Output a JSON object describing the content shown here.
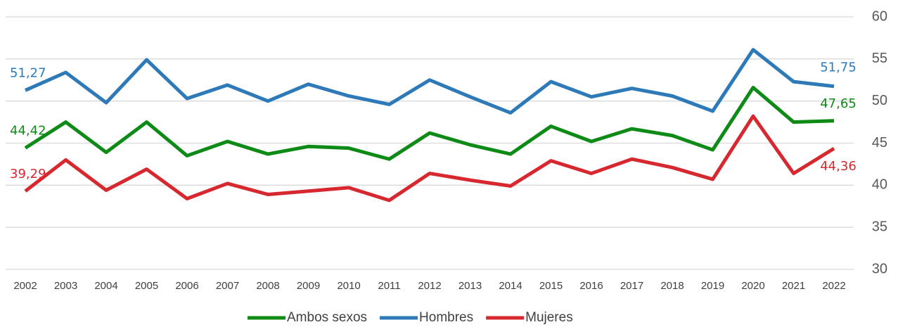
{
  "chart_data": {
    "type": "line",
    "categories": [
      "2002",
      "2003",
      "2004",
      "2005",
      "2006",
      "2007",
      "2008",
      "2009",
      "2010",
      "2011",
      "2012",
      "2013",
      "2014",
      "2015",
      "2016",
      "2017",
      "2018",
      "2019",
      "2020",
      "2021",
      "2022"
    ],
    "series": [
      {
        "name": "Ambos sexos",
        "color": "#0e8a16",
        "values": [
          44.42,
          47.5,
          43.9,
          47.5,
          43.5,
          45.2,
          43.7,
          44.6,
          44.4,
          43.1,
          46.2,
          44.8,
          43.7,
          47.0,
          45.2,
          46.7,
          45.9,
          44.2,
          51.6,
          47.5,
          47.65
        ],
        "value_labels": [
          "44,42",
          null,
          null,
          null,
          null,
          null,
          null,
          null,
          null,
          null,
          null,
          null,
          null,
          null,
          null,
          null,
          null,
          null,
          null,
          null,
          "47,65"
        ]
      },
      {
        "name": "Hombres",
        "color": "#2e7ab8",
        "values": [
          51.27,
          53.4,
          49.8,
          54.9,
          50.3,
          51.9,
          50.0,
          52.0,
          50.6,
          49.6,
          52.5,
          50.5,
          48.6,
          52.3,
          50.5,
          51.5,
          50.6,
          48.8,
          56.1,
          52.3,
          51.75
        ],
        "value_labels": [
          "51,27",
          null,
          null,
          null,
          null,
          null,
          null,
          null,
          null,
          null,
          null,
          null,
          null,
          null,
          null,
          null,
          null,
          null,
          null,
          null,
          "51,75"
        ]
      },
      {
        "name": "Mujeres",
        "color": "#d7282f",
        "values": [
          39.29,
          43.0,
          39.4,
          41.9,
          38.4,
          40.2,
          38.9,
          39.3,
          39.7,
          38.2,
          41.4,
          40.6,
          39.9,
          42.9,
          41.4,
          43.1,
          42.1,
          40.7,
          48.2,
          41.4,
          44.36
        ],
        "value_labels": [
          "39,29",
          null,
          null,
          null,
          null,
          null,
          null,
          null,
          null,
          null,
          null,
          null,
          null,
          null,
          null,
          null,
          null,
          null,
          null,
          null,
          "44,36"
        ]
      }
    ],
    "ylim": [
      30,
      60
    ],
    "yticks": [
      30,
      35,
      40,
      45,
      50,
      55,
      60
    ],
    "grid": true,
    "legend": "bottom"
  }
}
